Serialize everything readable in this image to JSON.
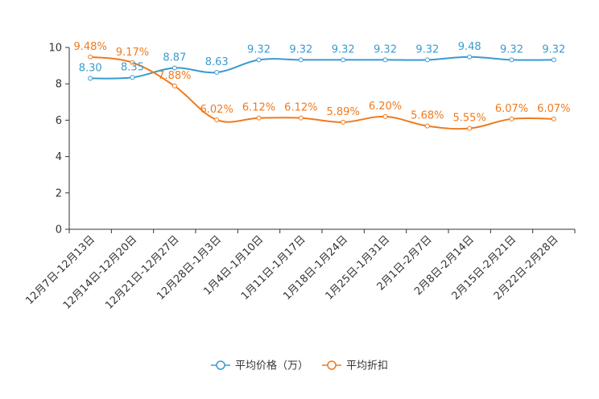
{
  "chart_data": {
    "type": "line",
    "categories": [
      "12月7日-12月13日",
      "12月14日-12月20日",
      "12月21日-12月27日",
      "12月28日-1月3日",
      "1月4日-1月10日",
      "1月11日-1月17日",
      "1月18日-1月24日",
      "1月25日-1月31日",
      "2月1日-2月7日",
      "2月8日-2月14日",
      "2月15日-2月21日",
      "2月22日-2月28日"
    ],
    "y_ticks": [
      "0",
      "2",
      "4",
      "6",
      "8",
      "10"
    ],
    "ylim": [
      0,
      10
    ],
    "series": [
      {
        "name": "平均价格（万）",
        "color": "#3a9bd0",
        "values": [
          8.3,
          8.35,
          8.87,
          8.63,
          9.32,
          9.32,
          9.32,
          9.32,
          9.32,
          9.48,
          9.32,
          9.32
        ],
        "labels": [
          "8.30",
          "8.35",
          "8.87",
          "8.63",
          "9.32",
          "9.32",
          "9.32",
          "9.32",
          "9.32",
          "9.48",
          "9.32",
          "9.32"
        ]
      },
      {
        "name": "平均折扣",
        "color": "#f07a1d",
        "values": [
          9.48,
          9.17,
          7.88,
          6.02,
          6.12,
          6.12,
          5.89,
          6.2,
          5.68,
          5.55,
          6.07,
          6.07
        ],
        "labels": [
          "9.48%",
          "9.17%",
          "7.88%",
          "6.02%",
          "6.12%",
          "6.12%",
          "5.89%",
          "6.20%",
          "5.68%",
          "5.55%",
          "6.07%",
          "6.07%"
        ]
      }
    ],
    "legend_position": "bottom-center",
    "grid": false
  }
}
